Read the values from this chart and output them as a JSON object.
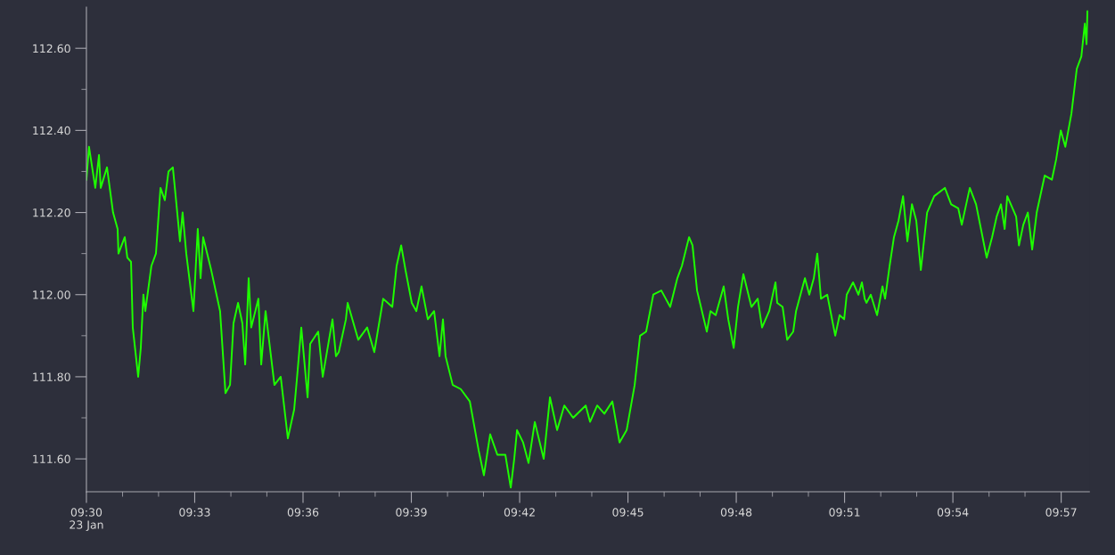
{
  "chart_data": {
    "type": "line",
    "x": [
      9.5,
      9.5012,
      9.5041,
      9.5058,
      9.5066,
      9.5095,
      9.5123,
      9.5144,
      9.5148,
      9.5177,
      9.5189,
      9.5206,
      9.5214,
      9.5239,
      9.5251,
      9.5263,
      9.5272,
      9.53,
      9.5321,
      9.5342,
      9.5362,
      9.5379,
      9.5399,
      9.5412,
      9.5432,
      9.5444,
      9.5461,
      9.5494,
      9.5514,
      9.5527,
      9.5539,
      9.5576,
      9.5617,
      9.5642,
      9.5663,
      9.5679,
      9.57,
      9.572,
      9.5733,
      9.5749,
      9.5761,
      9.5794,
      9.5807,
      9.5827,
      9.5868,
      9.5897,
      9.593,
      9.5959,
      9.5971,
      9.5992,
      9.6021,
      9.6033,
      9.607,
      9.6091,
      9.6136,
      9.6152,
      9.6165,
      9.6198,
      9.6206,
      9.6255,
      9.6296,
      9.6329,
      9.637,
      9.6412,
      9.6432,
      9.6453,
      9.6473,
      9.6502,
      9.6523,
      9.6547,
      9.6576,
      9.6605,
      9.663,
      9.6646,
      9.6658,
      9.6691,
      9.6728,
      9.677,
      9.6811,
      9.6835,
      9.6864,
      9.6897,
      9.6934,
      9.6959,
      9.6975,
      9.6988,
      9.7016,
      9.7041,
      9.707,
      9.7111,
      9.714,
      9.7173,
      9.7206,
      9.7247,
      9.7305,
      9.7325,
      9.7358,
      9.7391,
      9.7428,
      9.7461,
      9.7494,
      9.7531,
      9.7556,
      9.7584,
      9.7617,
      9.7654,
      9.7695,
      9.7728,
      9.7749,
      9.7782,
      9.7798,
      9.7819,
      9.7864,
      9.7881,
      9.7905,
      9.7942,
      9.7963,
      9.7988,
      9.8008,
      9.8033,
      9.807,
      9.8099,
      9.8119,
      9.8152,
      9.8181,
      9.8189,
      9.8214,
      9.8235,
      9.8263,
      9.8276,
      9.8317,
      9.8337,
      9.8358,
      9.8374,
      9.8391,
      9.842,
      9.8457,
      9.8477,
      9.8498,
      9.851,
      9.8539,
      9.8564,
      9.858,
      9.8593,
      9.8601,
      9.8621,
      9.865,
      9.8675,
      9.8687,
      9.8708,
      9.8728,
      9.8749,
      9.877,
      9.879,
      9.8811,
      9.8831,
      9.8852,
      9.8881,
      9.8914,
      9.8963,
      9.8992,
      9.9025,
      9.9041,
      9.9078,
      9.9107,
      9.9156,
      9.9181,
      9.9202,
      9.9222,
      9.9239,
      9.9251,
      9.9292,
      9.9305,
      9.9325,
      9.9346,
      9.9366,
      9.9387,
      9.9424,
      9.9457,
      9.9477,
      9.9498,
      9.9519,
      9.9547,
      9.9572,
      9.9593,
      9.9609,
      9.9617,
      9.9621
    ],
    "series": [
      {
        "color": "#1eff00",
        "values": [
          112.28,
          112.36,
          112.26,
          112.34,
          112.26,
          112.31,
          112.2,
          112.16,
          112.1,
          112.14,
          112.09,
          112.08,
          111.92,
          111.8,
          111.87,
          112.0,
          111.96,
          112.07,
          112.1,
          112.26,
          112.23,
          112.3,
          112.31,
          112.24,
          112.13,
          112.2,
          112.1,
          111.96,
          112.16,
          112.04,
          112.14,
          112.06,
          111.96,
          111.76,
          111.78,
          111.93,
          111.98,
          111.93,
          111.83,
          112.04,
          111.92,
          111.99,
          111.83,
          111.96,
          111.78,
          111.8,
          111.65,
          111.72,
          111.79,
          111.92,
          111.75,
          111.88,
          111.91,
          111.8,
          111.94,
          111.85,
          111.86,
          111.94,
          111.98,
          111.89,
          111.92,
          111.86,
          111.99,
          111.97,
          112.07,
          112.12,
          112.06,
          111.98,
          111.96,
          112.02,
          111.94,
          111.96,
          111.85,
          111.94,
          111.85,
          111.78,
          111.77,
          111.74,
          111.62,
          111.56,
          111.66,
          111.61,
          111.61,
          111.53,
          111.6,
          111.67,
          111.64,
          111.59,
          111.69,
          111.6,
          111.75,
          111.67,
          111.73,
          111.7,
          111.73,
          111.69,
          111.73,
          111.71,
          111.74,
          111.64,
          111.67,
          111.78,
          111.9,
          111.91,
          112.0,
          112.01,
          111.97,
          112.04,
          112.07,
          112.14,
          112.12,
          112.01,
          111.91,
          111.96,
          111.95,
          112.02,
          111.94,
          111.87,
          111.97,
          112.05,
          111.97,
          111.99,
          111.92,
          111.96,
          112.03,
          111.98,
          111.97,
          111.89,
          111.91,
          111.96,
          112.04,
          112.0,
          112.04,
          112.1,
          111.99,
          112.0,
          111.9,
          111.95,
          111.94,
          112.0,
          112.03,
          112.0,
          112.03,
          111.99,
          111.98,
          112.0,
          111.95,
          112.02,
          111.99,
          112.07,
          112.14,
          112.18,
          112.24,
          112.13,
          112.22,
          112.18,
          112.06,
          112.2,
          112.24,
          112.26,
          112.22,
          112.21,
          112.17,
          112.26,
          112.22,
          112.09,
          112.14,
          112.19,
          112.22,
          112.16,
          112.24,
          112.19,
          112.12,
          112.17,
          112.2,
          112.11,
          112.2,
          112.29,
          112.28,
          112.33,
          112.4,
          112.36,
          112.44,
          112.55,
          112.58,
          112.66,
          112.61,
          112.69
        ]
      }
    ],
    "xlim": [
      9.5,
      9.963
    ],
    "xticks": [
      {
        "value": 9.5,
        "label": "09:30\n23 Jan"
      },
      {
        "value": 9.5167,
        "label": null
      },
      {
        "value": 9.5333,
        "label": null
      },
      {
        "value": 9.55,
        "label": "09:33"
      },
      {
        "value": 9.5667,
        "label": null
      },
      {
        "value": 9.5833,
        "label": null
      },
      {
        "value": 9.6,
        "label": "09:36"
      },
      {
        "value": 9.6167,
        "label": null
      },
      {
        "value": 9.6333,
        "label": null
      },
      {
        "value": 9.65,
        "label": "09:39"
      },
      {
        "value": 9.6667,
        "label": null
      },
      {
        "value": 9.6833,
        "label": null
      },
      {
        "value": 9.7,
        "label": "09:42"
      },
      {
        "value": 9.7167,
        "label": null
      },
      {
        "value": 9.7333,
        "label": null
      },
      {
        "value": 9.75,
        "label": "09:45"
      },
      {
        "value": 9.7667,
        "label": null
      },
      {
        "value": 9.7833,
        "label": null
      },
      {
        "value": 9.8,
        "label": "09:48"
      },
      {
        "value": 9.8167,
        "label": null
      },
      {
        "value": 9.8333,
        "label": null
      },
      {
        "value": 9.85,
        "label": "09:51"
      },
      {
        "value": 9.8667,
        "label": null
      },
      {
        "value": 9.8833,
        "label": null
      },
      {
        "value": 9.9,
        "label": "09:54"
      },
      {
        "value": 9.9167,
        "label": null
      },
      {
        "value": 9.9333,
        "label": null
      },
      {
        "value": 9.95,
        "label": "09:57"
      }
    ],
    "ylim": [
      111.52,
      112.7
    ],
    "yticks": [
      {
        "value": 111.6,
        "label": "111.60"
      },
      {
        "value": 111.7,
        "label": null
      },
      {
        "value": 111.8,
        "label": "111.80"
      },
      {
        "value": 111.9,
        "label": null
      },
      {
        "value": 112.0,
        "label": "112.00"
      },
      {
        "value": 112.1,
        "label": null
      },
      {
        "value": 112.2,
        "label": "112.20"
      },
      {
        "value": 112.3,
        "label": null
      },
      {
        "value": 112.4,
        "label": "112.40"
      },
      {
        "value": 112.5,
        "label": null
      },
      {
        "value": 112.6,
        "label": "112.60"
      }
    ],
    "grid": false,
    "marker": "none",
    "line_style": "solid"
  }
}
